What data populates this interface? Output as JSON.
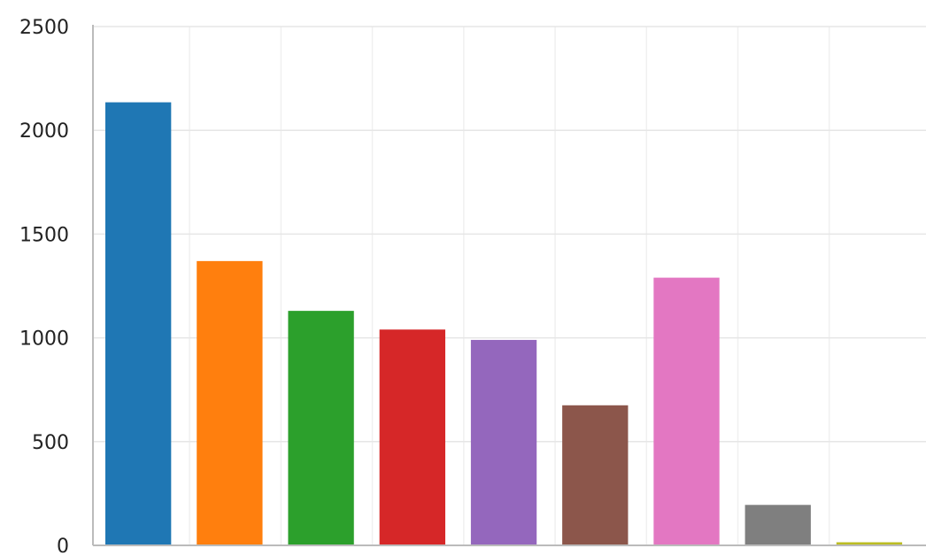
{
  "chart_data": {
    "type": "bar",
    "title": "",
    "xlabel": "",
    "ylabel": "",
    "ylim": [
      0,
      2500
    ],
    "yticks": [
      0,
      500,
      1000,
      1500,
      2000,
      2500
    ],
    "grid": true,
    "legend": "none",
    "values": [
      2135,
      1370,
      1130,
      1040,
      990,
      675,
      1290,
      195,
      15
    ],
    "colors": [
      "#1f77b4",
      "#ff7f0e",
      "#2ca02c",
      "#d62728",
      "#9467bd",
      "#8c564b",
      "#e377c2",
      "#7f7f7f",
      "#bcbd22"
    ]
  }
}
